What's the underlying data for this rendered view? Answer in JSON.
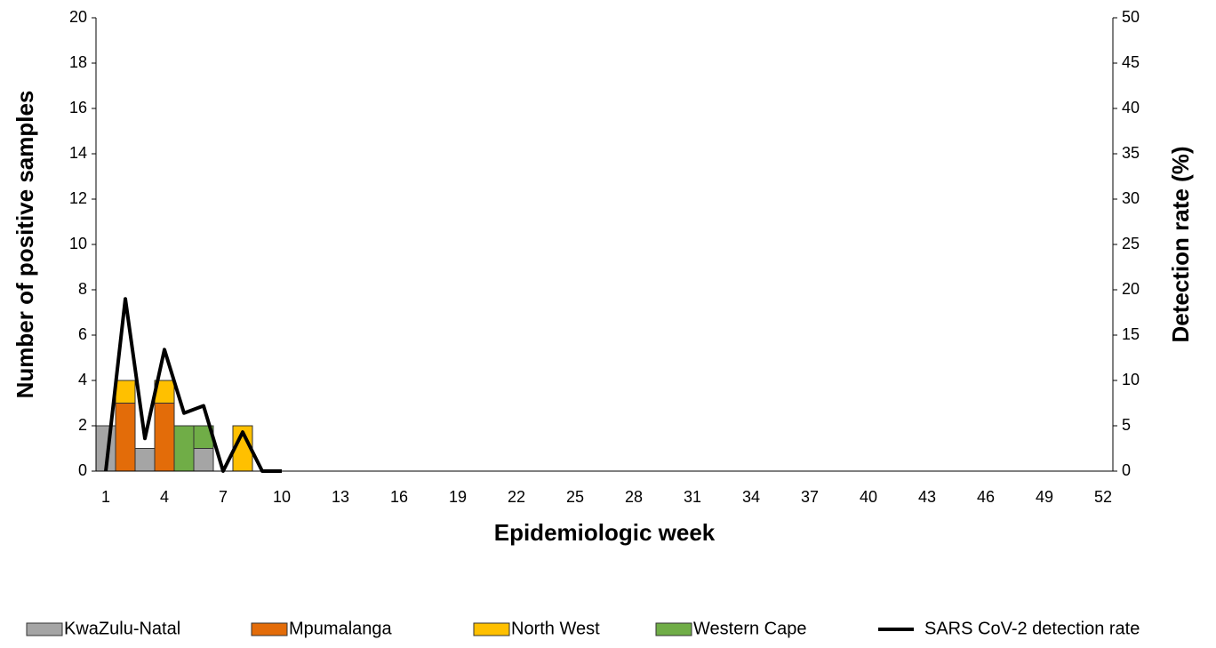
{
  "chart_data": {
    "type": "bar",
    "stacked": true,
    "x_label": "Epidemiologic week",
    "y_label": "Number of  positive samples",
    "y2_label": "Detection rate (%)",
    "categories": [
      1,
      null,
      null,
      4,
      null,
      null,
      7,
      null,
      null,
      10,
      null,
      null,
      13,
      null,
      null,
      16,
      null,
      null,
      19,
      null,
      null,
      22,
      null,
      null,
      25,
      null,
      null,
      28,
      null,
      null,
      31,
      null,
      null,
      34,
      null,
      null,
      37,
      null,
      null,
      40,
      null,
      null,
      43,
      null,
      null,
      46,
      null,
      null,
      49,
      null,
      null,
      52
    ],
    "ylim": [
      0,
      20
    ],
    "yticks": [
      0,
      2,
      4,
      6,
      8,
      10,
      12,
      14,
      16,
      18,
      20
    ],
    "y2lim": [
      0,
      50
    ],
    "y2ticks": [
      0,
      5,
      10,
      15,
      20,
      25,
      30,
      35,
      40,
      45,
      50
    ],
    "grid": false,
    "legend": "bottom",
    "series": [
      {
        "name": "KwaZulu-Natal",
        "color": "#a5a5a5",
        "values": [
          2,
          null,
          1,
          null,
          null,
          1,
          null,
          null,
          null,
          null,
          null,
          null,
          null,
          null,
          null,
          null,
          null,
          null,
          null,
          null,
          null,
          null,
          null,
          null,
          null,
          null,
          null,
          null,
          null,
          null,
          null,
          null,
          null,
          null,
          null,
          null,
          null,
          null,
          null,
          null,
          null,
          null,
          null,
          null,
          null,
          null,
          null,
          null,
          null,
          null,
          null,
          null
        ]
      },
      {
        "name": "Mpumalanga",
        "color": "#e36c09",
        "values": [
          null,
          3,
          null,
          3,
          null,
          null,
          null,
          null,
          null,
          null,
          null,
          null,
          null,
          null,
          null,
          null,
          null,
          null,
          null,
          null,
          null,
          null,
          null,
          null,
          null,
          null,
          null,
          null,
          null,
          null,
          null,
          null,
          null,
          null,
          null,
          null,
          null,
          null,
          null,
          null,
          null,
          null,
          null,
          null,
          null,
          null,
          null,
          null,
          null,
          null,
          null,
          null
        ]
      },
      {
        "name": "North West",
        "color": "#ffc000",
        "values": [
          null,
          1,
          null,
          1,
          null,
          null,
          null,
          2,
          null,
          null,
          null,
          null,
          null,
          null,
          null,
          null,
          null,
          null,
          null,
          null,
          null,
          null,
          null,
          null,
          null,
          null,
          null,
          null,
          null,
          null,
          null,
          null,
          null,
          null,
          null,
          null,
          null,
          null,
          null,
          null,
          null,
          null,
          null,
          null,
          null,
          null,
          null,
          null,
          null,
          null,
          null,
          null
        ]
      },
      {
        "name": "Western Cape",
        "color": "#70ad47",
        "values": [
          null,
          null,
          null,
          null,
          2,
          1,
          null,
          null,
          null,
          null,
          null,
          null,
          null,
          null,
          null,
          null,
          null,
          null,
          null,
          null,
          null,
          null,
          null,
          null,
          null,
          null,
          null,
          null,
          null,
          null,
          null,
          null,
          null,
          null,
          null,
          null,
          null,
          null,
          null,
          null,
          null,
          null,
          null,
          null,
          null,
          null,
          null,
          null,
          null,
          null,
          null,
          null
        ]
      },
      {
        "name": "SARS CoV-2 detection rate",
        "type": "line",
        "axis": "y2",
        "color": "#000000",
        "values": [
          0,
          19,
          3.6,
          13.4,
          6.4,
          7.2,
          0,
          4.3,
          0,
          0,
          null,
          null,
          null,
          null,
          null,
          null,
          null,
          null,
          null,
          null,
          null,
          null,
          null,
          null,
          null,
          null,
          null,
          null,
          null,
          null,
          null,
          null,
          null,
          null,
          null,
          null,
          null,
          null,
          null,
          null,
          null,
          null,
          null,
          null,
          null,
          null,
          null,
          null,
          null,
          null,
          null,
          null
        ]
      }
    ]
  }
}
